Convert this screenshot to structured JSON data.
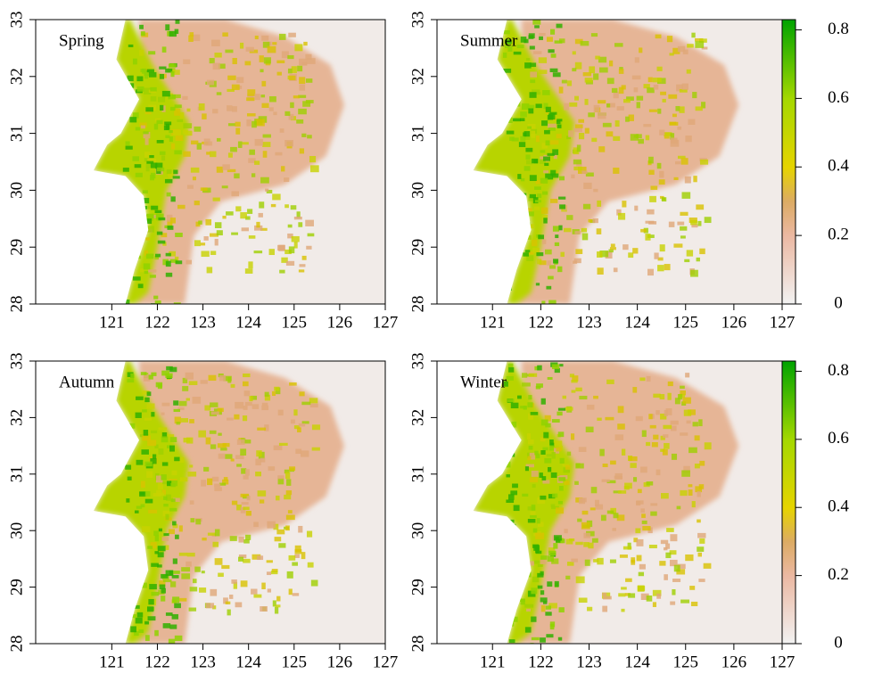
{
  "chart_data": [
    {
      "type": "heatmap",
      "title": "Spring",
      "xlim": [
        119.33,
        127
      ],
      "ylim": [
        28,
        33
      ],
      "xticks": [
        121,
        122,
        123,
        124,
        125,
        126,
        127
      ],
      "yticks": [
        28,
        29,
        30,
        31,
        32,
        33
      ]
    },
    {
      "type": "heatmap",
      "title": "Summer",
      "xlim": [
        119.85,
        127
      ],
      "ylim": [
        28,
        33
      ],
      "xticks": [
        121,
        122,
        123,
        124,
        125,
        126,
        127
      ],
      "yticks": [
        28,
        29,
        30,
        31,
        32,
        33
      ],
      "colorbar": {
        "lim": [
          0,
          0.83
        ],
        "ticks": [
          0,
          0.2,
          0.4,
          0.6,
          0.8
        ]
      }
    },
    {
      "type": "heatmap",
      "title": "Autumn",
      "xlim": [
        119.33,
        127
      ],
      "ylim": [
        28,
        33
      ],
      "xticks": [
        121,
        122,
        123,
        124,
        125,
        126,
        127
      ],
      "yticks": [
        28,
        29,
        30,
        31,
        32,
        33
      ]
    },
    {
      "type": "heatmap",
      "title": "Winter",
      "xlim": [
        119.85,
        127
      ],
      "ylim": [
        28,
        33
      ],
      "xticks": [
        121,
        122,
        123,
        124,
        125,
        126,
        127
      ],
      "yticks": [
        28,
        29,
        30,
        31,
        32,
        33
      ],
      "colorbar": {
        "lim": [
          0,
          0.83
        ],
        "ticks": [
          0,
          0.2,
          0.4,
          0.6,
          0.8
        ]
      }
    }
  ]
}
